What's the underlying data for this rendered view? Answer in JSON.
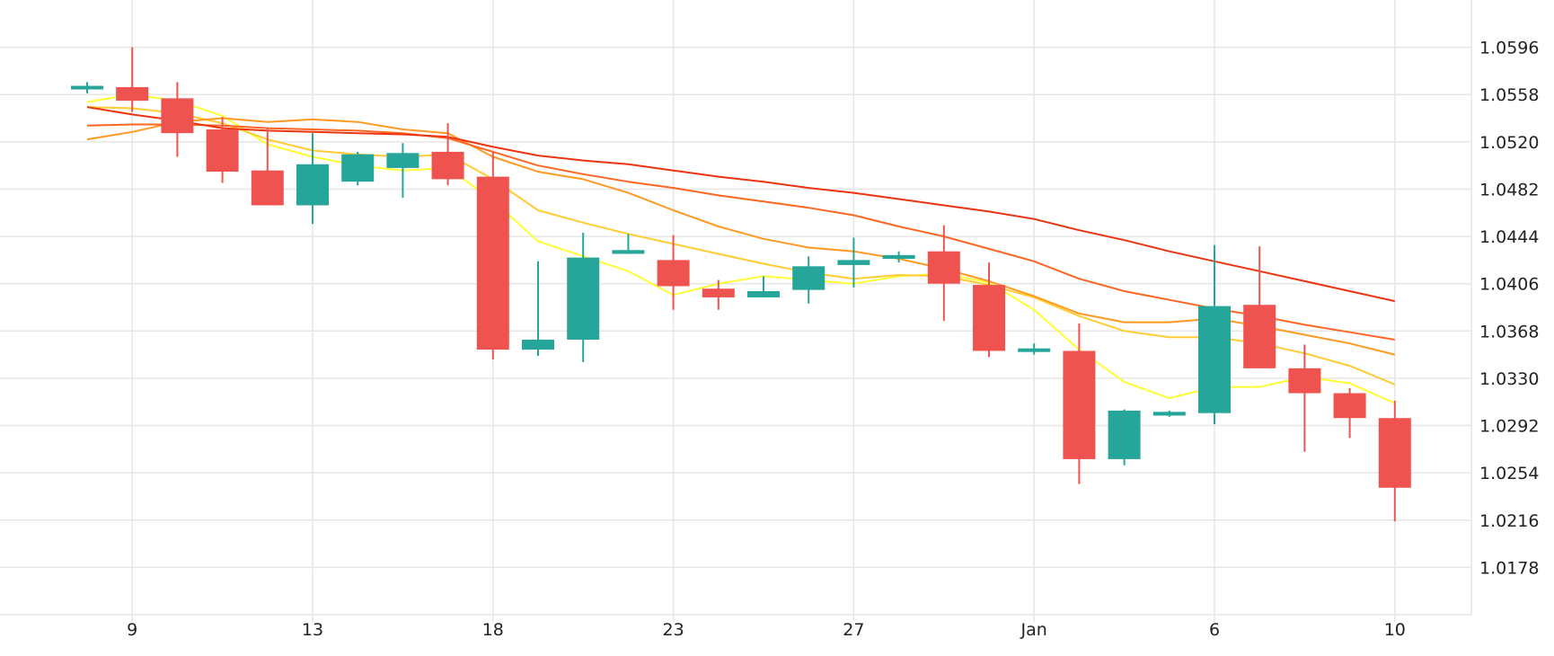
{
  "chart_data": {
    "type": "candlestick",
    "title": "",
    "xlabel": "",
    "ylabel": "",
    "x_tick_labels": [
      {
        "label": "9",
        "i": 1
      },
      {
        "label": "13",
        "i": 5
      },
      {
        "label": "18",
        "i": 9
      },
      {
        "label": "23",
        "i": 13
      },
      {
        "label": "27",
        "i": 17
      },
      {
        "label": "Jan",
        "i": 21
      },
      {
        "label": "6",
        "i": 25
      },
      {
        "label": "10",
        "i": 29
      }
    ],
    "y_ticks": [
      "1.0596",
      "1.0558",
      "1.0520",
      "1.0482",
      "1.0444",
      "1.0406",
      "1.0368",
      "1.0330",
      "1.0292",
      "1.0254",
      "1.0216",
      "1.0178"
    ],
    "ylim": [
      1.014,
      1.0634
    ],
    "grid": true,
    "colors": {
      "up": "#26a69a",
      "down": "#ef5350",
      "grid": "#e6e6e6"
    },
    "candles": [
      {
        "o": 1.0563,
        "h": 1.0568,
        "l": 1.0559,
        "c": 1.0565
      },
      {
        "o": 1.0564,
        "h": 1.0596,
        "l": 1.0544,
        "c": 1.0553
      },
      {
        "o": 1.0555,
        "h": 1.0568,
        "l": 1.0508,
        "c": 1.0527
      },
      {
        "o": 1.053,
        "h": 1.054,
        "l": 1.0487,
        "c": 1.0496
      },
      {
        "o": 1.0497,
        "h": 1.0531,
        "l": 1.047,
        "c": 1.0469
      },
      {
        "o": 1.0469,
        "h": 1.0527,
        "l": 1.0454,
        "c": 1.0502
      },
      {
        "o": 1.0488,
        "h": 1.0512,
        "l": 1.0485,
        "c": 1.051
      },
      {
        "o": 1.0499,
        "h": 1.0519,
        "l": 1.0475,
        "c": 1.0511
      },
      {
        "o": 1.0512,
        "h": 1.0535,
        "l": 1.0485,
        "c": 1.049
      },
      {
        "o": 1.0492,
        "h": 1.0512,
        "l": 1.0345,
        "c": 1.0353
      },
      {
        "o": 1.0353,
        "h": 1.0424,
        "l": 1.0348,
        "c": 1.0361
      },
      {
        "o": 1.0361,
        "h": 1.0447,
        "l": 1.0343,
        "c": 1.0427
      },
      {
        "o": 1.043,
        "h": 1.0446,
        "l": 1.043,
        "c": 1.0433
      },
      {
        "o": 1.0425,
        "h": 1.0445,
        "l": 1.0385,
        "c": 1.0404
      },
      {
        "o": 1.0402,
        "h": 1.0409,
        "l": 1.0385,
        "c": 1.0395
      },
      {
        "o": 1.0395,
        "h": 1.0412,
        "l": 1.0395,
        "c": 1.04
      },
      {
        "o": 1.0401,
        "h": 1.0428,
        "l": 1.039,
        "c": 1.042
      },
      {
        "o": 1.0421,
        "h": 1.0443,
        "l": 1.0403,
        "c": 1.0425
      },
      {
        "o": 1.0426,
        "h": 1.0432,
        "l": 1.0423,
        "c": 1.0429
      },
      {
        "o": 1.0432,
        "h": 1.0453,
        "l": 1.0376,
        "c": 1.0406
      },
      {
        "o": 1.0405,
        "h": 1.0423,
        "l": 1.0347,
        "c": 1.0352
      },
      {
        "o": 1.0353,
        "h": 1.0358,
        "l": 1.0349,
        "c": 1.0354
      },
      {
        "o": 1.0352,
        "h": 1.0374,
        "l": 1.0245,
        "c": 1.0265
      },
      {
        "o": 1.0265,
        "h": 1.0305,
        "l": 1.026,
        "c": 1.0304
      },
      {
        "o": 1.03,
        "h": 1.0304,
        "l": 1.0299,
        "c": 1.0303
      },
      {
        "o": 1.0302,
        "h": 1.0437,
        "l": 1.0293,
        "c": 1.0388
      },
      {
        "o": 1.0389,
        "h": 1.0436,
        "l": 1.0338,
        "c": 1.0338
      },
      {
        "o": 1.0338,
        "h": 1.0357,
        "l": 1.0271,
        "c": 1.0318
      },
      {
        "o": 1.0318,
        "h": 1.0322,
        "l": 1.0282,
        "c": 1.0298
      },
      {
        "o": 1.0298,
        "h": 1.0312,
        "l": 1.0215,
        "c": 1.0242
      }
    ],
    "moving_averages": [
      {
        "color": "#ffff33",
        "start_index": 0,
        "values": [
          1.0552,
          1.0558,
          1.0553,
          1.0541,
          1.0518,
          1.0508,
          1.0501,
          1.0497,
          1.0499,
          1.0473,
          1.044,
          1.0428,
          1.0416,
          1.0397,
          1.0406,
          1.0412,
          1.0409,
          1.0406,
          1.0412,
          1.0414,
          1.0407,
          1.0385,
          1.0353,
          1.0327,
          1.0314,
          1.0323,
          1.0323,
          1.0331,
          1.0326,
          1.031
        ]
      },
      {
        "color": "#ffcc33",
        "start_index": 0,
        "values": [
          1.0548,
          1.0547,
          1.0543,
          1.0535,
          1.0522,
          1.0513,
          1.051,
          1.0508,
          1.051,
          1.049,
          1.0465,
          1.0455,
          1.0446,
          1.0438,
          1.043,
          1.0422,
          1.0415,
          1.041,
          1.0413,
          1.0412,
          1.0405,
          1.0395,
          1.038,
          1.0368,
          1.0363,
          1.0363,
          1.0358,
          1.035,
          1.034,
          1.0325
        ]
      },
      {
        "color": "#ff9922",
        "start_index": 0,
        "values": [
          1.0522,
          1.0528,
          1.0536,
          1.0539,
          1.0536,
          1.0538,
          1.0536,
          1.053,
          1.0527,
          1.0508,
          1.0496,
          1.049,
          1.0479,
          1.0465,
          1.0452,
          1.0442,
          1.0435,
          1.0432,
          1.0426,
          1.0418,
          1.0408,
          1.0396,
          1.0382,
          1.0375,
          1.0375,
          1.0378,
          1.0372,
          1.0365,
          1.0358,
          1.0349
        ]
      },
      {
        "color": "#ff6622",
        "start_index": 0,
        "values": [
          1.0533,
          1.0534,
          1.0534,
          1.0533,
          1.0531,
          1.053,
          1.0529,
          1.0527,
          1.0523,
          1.0512,
          1.0501,
          1.0494,
          1.0488,
          1.0483,
          1.0477,
          1.0472,
          1.0467,
          1.0461,
          1.0452,
          1.0444,
          1.0434,
          1.0424,
          1.041,
          1.04,
          1.0393,
          1.0386,
          1.038,
          1.0373,
          1.0367,
          1.0361
        ]
      },
      {
        "color": "#ee3311",
        "start_index": 0,
        "values": [
          1.0548,
          1.0542,
          1.0537,
          1.0531,
          1.0529,
          1.0528,
          1.0527,
          1.0526,
          1.0524,
          1.0516,
          1.0509,
          1.0505,
          1.0502,
          1.0497,
          1.0492,
          1.0488,
          1.0483,
          1.0479,
          1.0474,
          1.0469,
          1.0464,
          1.0458,
          1.0449,
          1.0441,
          1.0432,
          1.0424,
          1.0416,
          1.0408,
          1.04,
          1.0392
        ]
      }
    ]
  }
}
